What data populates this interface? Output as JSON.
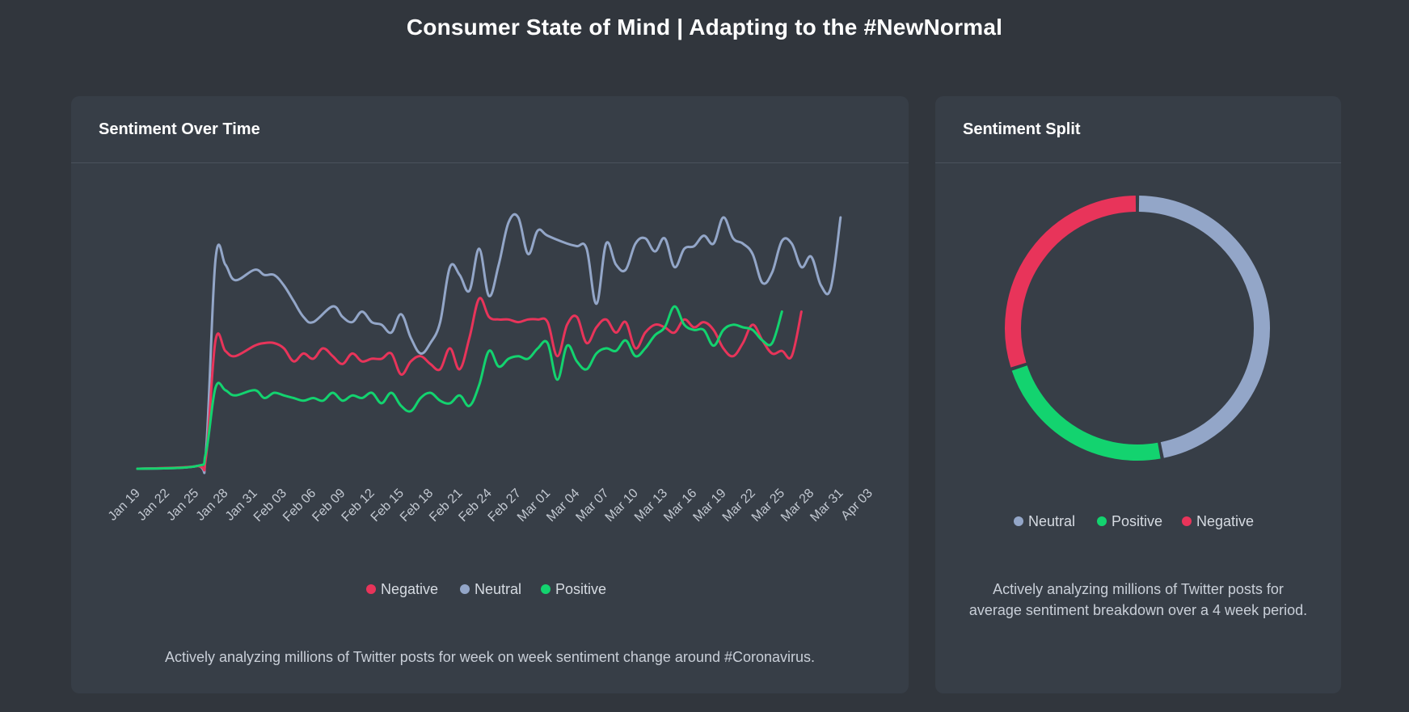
{
  "page": {
    "title": "Consumer State of Mind | Adapting to the #NewNormal"
  },
  "left_card": {
    "title": "Sentiment Over Time",
    "footnote": "Actively analyzing millions of Twitter posts for week on week sentiment change around #Coronavirus."
  },
  "right_card": {
    "title": "Sentiment Split",
    "footnote_lines": [
      "Actively analyzing millions of Twitter posts for",
      "average sentiment breakdown over a 4 week period."
    ]
  },
  "colors": {
    "negative": "#e8345a",
    "neutral": "#93a6c8",
    "positive": "#13d36f"
  },
  "chart_data": [
    {
      "type": "line",
      "title": "Sentiment Over Time",
      "tick_labels": [
        "Jan 19",
        "Jan 22",
        "Jan 25",
        "Jan 28",
        "Jan 31",
        "Feb 03",
        "Feb 06",
        "Feb 09",
        "Feb 12",
        "Feb 15",
        "Feb 18",
        "Feb 21",
        "Feb 24",
        "Feb 27",
        "Mar 01",
        "Mar 04",
        "Mar 07",
        "Mar 10",
        "Mar 13",
        "Mar 16",
        "Mar 19",
        "Mar 22",
        "Mar 25",
        "Mar 28",
        "Mar 31",
        "Apr 03"
      ],
      "days_per_tick": 3,
      "ylim": [
        0,
        100
      ],
      "legend": [
        "Negative",
        "Neutral",
        "Positive"
      ],
      "legend_position": "bottom",
      "grid": false,
      "series": [
        {
          "name": "Neutral",
          "color": "#93a6c8",
          "points": [
            [
              0,
              0
            ],
            [
              6,
              1
            ],
            [
              7,
              6
            ],
            [
              8,
              80
            ],
            [
              9,
              78
            ],
            [
              10,
              72
            ],
            [
              12,
              76
            ],
            [
              13,
              74
            ],
            [
              14,
              74
            ],
            [
              15,
              70
            ],
            [
              16,
              64
            ],
            [
              17,
              58
            ],
            [
              18,
              56
            ],
            [
              20,
              62
            ],
            [
              21,
              58
            ],
            [
              22,
              56
            ],
            [
              23,
              60
            ],
            [
              24,
              56
            ],
            [
              25,
              55
            ],
            [
              26,
              52
            ],
            [
              27,
              59
            ],
            [
              28,
              50
            ],
            [
              29,
              44
            ],
            [
              30,
              48
            ],
            [
              31,
              56
            ],
            [
              32,
              77
            ],
            [
              33,
              74
            ],
            [
              34,
              68
            ],
            [
              35,
              84
            ],
            [
              36,
              66
            ],
            [
              37,
              78
            ],
            [
              38,
              94
            ],
            [
              39,
              96
            ],
            [
              40,
              82
            ],
            [
              41,
              91
            ],
            [
              42,
              89
            ],
            [
              44,
              86
            ],
            [
              45,
              85
            ],
            [
              46,
              84
            ],
            [
              47,
              63
            ],
            [
              48,
              86
            ],
            [
              49,
              78
            ],
            [
              50,
              76
            ],
            [
              51,
              86
            ],
            [
              52,
              88
            ],
            [
              53,
              83
            ],
            [
              54,
              88
            ],
            [
              55,
              77
            ],
            [
              56,
              84
            ],
            [
              57,
              85
            ],
            [
              58,
              89
            ],
            [
              59,
              86
            ],
            [
              60,
              96
            ],
            [
              61,
              88
            ],
            [
              62,
              86
            ],
            [
              63,
              82
            ],
            [
              64,
              71
            ],
            [
              65,
              75
            ],
            [
              66,
              87
            ],
            [
              67,
              86
            ],
            [
              68,
              77
            ],
            [
              69,
              81
            ],
            [
              70,
              70
            ],
            [
              71,
              69
            ],
            [
              72,
              96
            ]
          ]
        },
        {
          "name": "Negative",
          "color": "#e8345a",
          "points": [
            [
              0,
              0
            ],
            [
              6,
              1
            ],
            [
              7,
              4
            ],
            [
              8,
              49
            ],
            [
              9,
              45
            ],
            [
              10,
              43
            ],
            [
              12,
              47
            ],
            [
              13,
              48
            ],
            [
              14,
              48
            ],
            [
              15,
              46
            ],
            [
              16,
              41
            ],
            [
              17,
              44
            ],
            [
              18,
              42
            ],
            [
              19,
              46
            ],
            [
              20,
              43
            ],
            [
              21,
              40
            ],
            [
              22,
              44
            ],
            [
              23,
              41
            ],
            [
              24,
              42
            ],
            [
              25,
              42
            ],
            [
              26,
              44
            ],
            [
              27,
              36
            ],
            [
              28,
              41
            ],
            [
              29,
              43
            ],
            [
              30,
              40
            ],
            [
              31,
              38
            ],
            [
              32,
              46
            ],
            [
              33,
              38
            ],
            [
              34,
              50
            ],
            [
              35,
              65
            ],
            [
              36,
              58
            ],
            [
              37,
              57
            ],
            [
              38,
              57
            ],
            [
              39,
              56
            ],
            [
              40,
              57
            ],
            [
              41,
              57
            ],
            [
              42,
              56
            ],
            [
              43,
              43
            ],
            [
              44,
              55
            ],
            [
              45,
              58
            ],
            [
              46,
              48
            ],
            [
              47,
              54
            ],
            [
              48,
              57
            ],
            [
              49,
              52
            ],
            [
              50,
              56
            ],
            [
              51,
              46
            ],
            [
              52,
              52
            ],
            [
              53,
              55
            ],
            [
              54,
              54
            ],
            [
              55,
              52
            ],
            [
              56,
              57
            ],
            [
              57,
              54
            ],
            [
              58,
              56
            ],
            [
              59,
              53
            ],
            [
              60,
              46
            ],
            [
              61,
              43
            ],
            [
              62,
              48
            ],
            [
              63,
              55
            ],
            [
              64,
              49
            ],
            [
              65,
              44
            ],
            [
              66,
              45
            ],
            [
              67,
              43
            ],
            [
              68,
              60
            ]
          ]
        },
        {
          "name": "Positive",
          "color": "#13d36f",
          "points": [
            [
              0,
              0
            ],
            [
              6,
              1
            ],
            [
              7,
              6
            ],
            [
              8,
              31
            ],
            [
              9,
              30
            ],
            [
              10,
              28
            ],
            [
              12,
              30
            ],
            [
              13,
              27
            ],
            [
              14,
              29
            ],
            [
              15,
              28
            ],
            [
              16,
              27
            ],
            [
              17,
              26
            ],
            [
              18,
              27
            ],
            [
              19,
              26
            ],
            [
              20,
              29
            ],
            [
              21,
              26
            ],
            [
              22,
              28
            ],
            [
              23,
              27
            ],
            [
              24,
              29
            ],
            [
              25,
              25
            ],
            [
              26,
              29
            ],
            [
              27,
              24
            ],
            [
              28,
              22
            ],
            [
              29,
              27
            ],
            [
              30,
              29
            ],
            [
              31,
              26
            ],
            [
              32,
              25
            ],
            [
              33,
              28
            ],
            [
              34,
              24
            ],
            [
              35,
              32
            ],
            [
              36,
              45
            ],
            [
              37,
              39
            ],
            [
              38,
              42
            ],
            [
              39,
              43
            ],
            [
              40,
              42
            ],
            [
              41,
              46
            ],
            [
              42,
              48
            ],
            [
              43,
              34
            ],
            [
              44,
              47
            ],
            [
              45,
              41
            ],
            [
              46,
              38
            ],
            [
              47,
              44
            ],
            [
              48,
              46
            ],
            [
              49,
              45
            ],
            [
              50,
              49
            ],
            [
              51,
              43
            ],
            [
              52,
              46
            ],
            [
              53,
              51
            ],
            [
              54,
              54
            ],
            [
              55,
              62
            ],
            [
              56,
              55
            ],
            [
              57,
              53
            ],
            [
              58,
              53
            ],
            [
              59,
              47
            ],
            [
              60,
              53
            ],
            [
              61,
              55
            ],
            [
              62,
              54
            ],
            [
              63,
              53
            ],
            [
              64,
              49
            ],
            [
              65,
              48
            ],
            [
              66,
              60
            ]
          ]
        }
      ]
    },
    {
      "type": "pie",
      "title": "Sentiment Split",
      "donut": true,
      "legend_position": "bottom",
      "slices": [
        {
          "name": "Neutral",
          "value": 47,
          "color": "#93a6c8"
        },
        {
          "name": "Positive",
          "value": 23,
          "color": "#13d36f"
        },
        {
          "name": "Negative",
          "value": 30,
          "color": "#e8345a"
        }
      ]
    }
  ]
}
